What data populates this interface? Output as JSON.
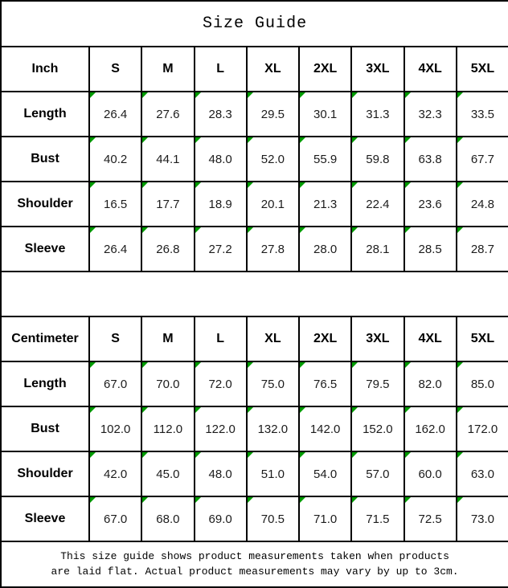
{
  "title": "Size Guide",
  "columns": [
    "S",
    "M",
    "L",
    "XL",
    "2XL",
    "3XL",
    "4XL",
    "5XL"
  ],
  "tables": [
    {
      "unit_label": "Inch",
      "rows": [
        {
          "label": "Length",
          "values": [
            "26.4",
            "27.6",
            "28.3",
            "29.5",
            "30.1",
            "31.3",
            "32.3",
            "33.5"
          ]
        },
        {
          "label": "Bust",
          "values": [
            "40.2",
            "44.1",
            "48.0",
            "52.0",
            "55.9",
            "59.8",
            "63.8",
            "67.7"
          ]
        },
        {
          "label": "Shoulder",
          "values": [
            "16.5",
            "17.7",
            "18.9",
            "20.1",
            "21.3",
            "22.4",
            "23.6",
            "24.8"
          ]
        },
        {
          "label": "Sleeve",
          "values": [
            "26.4",
            "26.8",
            "27.2",
            "27.8",
            "28.0",
            "28.1",
            "28.5",
            "28.7"
          ]
        }
      ]
    },
    {
      "unit_label": "Centimeter",
      "rows": [
        {
          "label": "Length",
          "values": [
            "67.0",
            "70.0",
            "72.0",
            "75.0",
            "76.5",
            "79.5",
            "82.0",
            "85.0"
          ]
        },
        {
          "label": "Bust",
          "values": [
            "102.0",
            "112.0",
            "122.0",
            "132.0",
            "142.0",
            "152.0",
            "162.0",
            "172.0"
          ]
        },
        {
          "label": "Shoulder",
          "values": [
            "42.0",
            "45.0",
            "48.0",
            "51.0",
            "54.0",
            "57.0",
            "60.0",
            "63.0"
          ]
        },
        {
          "label": "Sleeve",
          "values": [
            "67.0",
            "68.0",
            "69.0",
            "70.5",
            "71.0",
            "71.5",
            "72.5",
            "73.0"
          ]
        }
      ]
    }
  ],
  "footer_note": {
    "line1": "This size guide shows product measurements taken when products",
    "line2": "are laid flat. Actual product measurements may vary by up to 3cm."
  },
  "colors": {
    "triangle_marker": "#009b00",
    "border": "#000000",
    "background": "#ffffff",
    "text": "#000000"
  }
}
